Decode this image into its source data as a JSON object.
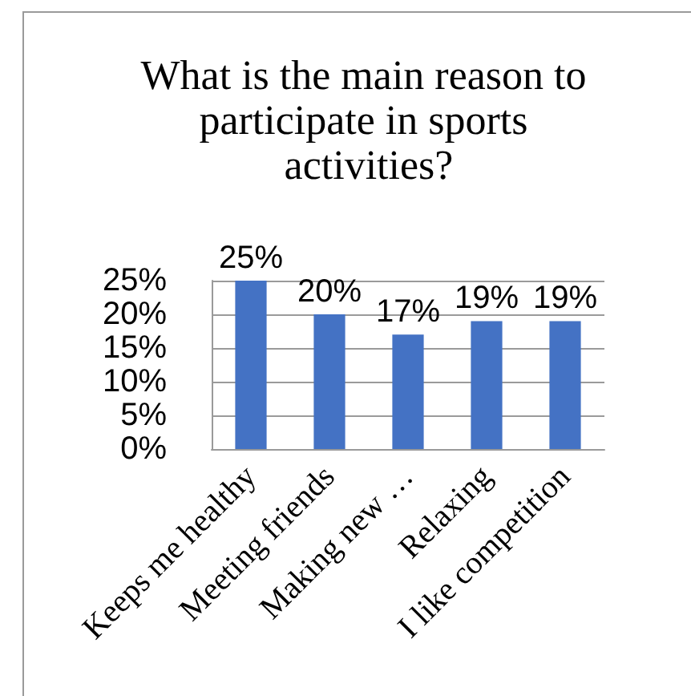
{
  "chart_data": {
    "type": "bar",
    "title": "What is the main reason to participate in sports activities?",
    "categories": [
      "Keeps me healthy",
      "Meeting friends",
      "Making new …",
      "Relaxing",
      "I like competition"
    ],
    "values": [
      25,
      20,
      17,
      19,
      19
    ],
    "color": "#4472c4",
    "value_labels": [
      "25%",
      "20%",
      "17%",
      "19%",
      "19%"
    ],
    "ylim": [
      0,
      25
    ],
    "yticks": [
      {
        "value": 0,
        "label": "0%"
      },
      {
        "value": 5,
        "label": "5%"
      },
      {
        "value": 10,
        "label": "10%"
      },
      {
        "value": 15,
        "label": "15%"
      },
      {
        "value": 20,
        "label": "20%"
      },
      {
        "value": 25,
        "label": "25%"
      }
    ],
    "grid": "y"
  }
}
